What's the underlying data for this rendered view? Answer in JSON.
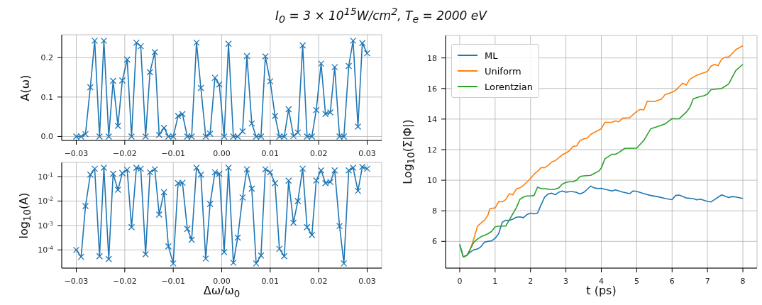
{
  "chart_data": [
    {
      "type": "line",
      "title": "I$_{0}$ = 3 × 10$^{15}$W/cm$^{2}$, T$_{e}$ = 2000 eV",
      "ylabel": "A(ω)",
      "color": "#1f77b4",
      "marker": "cross",
      "grid": true,
      "x": [
        -0.03,
        -0.029,
        -0.0281,
        -0.0271,
        -0.0262,
        -0.0252,
        -0.0243,
        -0.0233,
        -0.0224,
        -0.0214,
        -0.0205,
        -0.0195,
        -0.0186,
        -0.0176,
        -0.0167,
        -0.0157,
        -0.0148,
        -0.0138,
        -0.0129,
        -0.0119,
        -0.011,
        -0.01,
        -0.009,
        -0.0081,
        -0.0071,
        -0.0062,
        -0.0052,
        -0.0043,
        -0.0033,
        -0.0024,
        -0.0014,
        -0.0005,
        0.0005,
        0.0014,
        0.0024,
        0.0033,
        0.0043,
        0.0052,
        0.0062,
        0.0071,
        0.0081,
        0.009,
        0.01,
        0.011,
        0.0119,
        0.0129,
        0.0138,
        0.0148,
        0.0157,
        0.0167,
        0.0176,
        0.0186,
        0.0195,
        0.0205,
        0.0214,
        0.0224,
        0.0233,
        0.0243,
        0.0252,
        0.0262,
        0.0271,
        0.0281,
        0.029,
        0.03
      ],
      "values": [
        0,
        0,
        0.006,
        0.125,
        0.243,
        0,
        0.243,
        0,
        0.141,
        0.027,
        0.142,
        0.195,
        0,
        0.238,
        0.229,
        0,
        0.163,
        0.214,
        0.004,
        0.022,
        0,
        0,
        0.052,
        0.057,
        0,
        0,
        0.238,
        0.123,
        0,
        0.007,
        0.149,
        0.132,
        0,
        0.235,
        0,
        0,
        0.013,
        0.204,
        0.033,
        0,
        0,
        0.203,
        0.14,
        0.052,
        0,
        0,
        0.069,
        0.001,
        0.01,
        0.231,
        0,
        0,
        0.067,
        0.185,
        0.057,
        0.061,
        0.176,
        0,
        0,
        0.179,
        0.243,
        0.025,
        0.237,
        0.211
      ],
      "xlim": [
        -0.033,
        0.033
      ],
      "ylim": [
        -0.01,
        0.258
      ],
      "xticks": [
        {
          "value": -0.03,
          "label": "−0.03"
        },
        {
          "value": -0.02,
          "label": "−0.02"
        },
        {
          "value": -0.01,
          "label": "−0.01"
        },
        {
          "value": 0,
          "label": "0.00"
        },
        {
          "value": 0.01,
          "label": "0.01"
        },
        {
          "value": 0.02,
          "label": "0.02"
        },
        {
          "value": 0.03,
          "label": "0.03"
        }
      ],
      "yticks": [
        {
          "value": 0,
          "label": "0.0"
        },
        {
          "value": 0.1,
          "label": "0.1"
        },
        {
          "value": 0.2,
          "label": "0.2"
        }
      ]
    },
    {
      "type": "line",
      "xlabel": "Δω/ω$_{0}$",
      "ylabel": "log$_{10}$(A)",
      "color": "#1f77b4",
      "marker": "cross",
      "grid": true,
      "log": "y",
      "x": [
        -0.03,
        -0.029,
        -0.0281,
        -0.0271,
        -0.0262,
        -0.0252,
        -0.0243,
        -0.0233,
        -0.0224,
        -0.0214,
        -0.0205,
        -0.0195,
        -0.0186,
        -0.0176,
        -0.0167,
        -0.0157,
        -0.0148,
        -0.0138,
        -0.0129,
        -0.0119,
        -0.011,
        -0.01,
        -0.009,
        -0.0081,
        -0.0071,
        -0.0062,
        -0.0052,
        -0.0043,
        -0.0033,
        -0.0024,
        -0.0014,
        -0.0005,
        0.0005,
        0.0014,
        0.0024,
        0.0033,
        0.0043,
        0.0052,
        0.0062,
        0.0071,
        0.0081,
        0.009,
        0.01,
        0.011,
        0.0119,
        0.0129,
        0.0138,
        0.0148,
        0.0157,
        0.0167,
        0.0176,
        0.0186,
        0.0195,
        0.0205,
        0.0214,
        0.0224,
        0.0233,
        0.0243,
        0.0252,
        0.0262,
        0.0271,
        0.0281,
        0.029,
        0.03
      ],
      "values": [
        0.0001,
        5.2e-05,
        0.0062,
        0.12,
        0.21,
        5.5e-05,
        0.23,
        4.2e-05,
        0.13,
        0.029,
        0.14,
        0.19,
        0.00085,
        0.23,
        0.21,
        6.6e-05,
        0.15,
        0.2,
        0.0028,
        0.023,
        0.00014,
        2.8e-05,
        0.054,
        0.056,
        0.00072,
        0.00026,
        0.23,
        0.12,
        4.4e-05,
        0.0076,
        0.15,
        0.13,
        8.1e-05,
        0.23,
        3e-05,
        0.00032,
        0.014,
        0.2,
        0.032,
        2.8e-05,
        5.9e-05,
        0.2,
        0.15,
        0.054,
        0.00011,
        5.5e-05,
        0.068,
        0.0013,
        0.01,
        0.21,
        0.00085,
        0.00041,
        0.069,
        0.18,
        0.054,
        0.06,
        0.18,
        0.00095,
        2.8e-05,
        0.18,
        0.23,
        0.026,
        0.25,
        0.21
      ],
      "xlim": [
        -0.033,
        0.033
      ],
      "ylim": [
        1.8e-05,
        0.38
      ],
      "xticks": [
        {
          "value": -0.03,
          "label": "−0.03"
        },
        {
          "value": -0.02,
          "label": "−0.02"
        },
        {
          "value": -0.01,
          "label": "−0.01"
        },
        {
          "value": 0,
          "label": "0.00"
        },
        {
          "value": 0.01,
          "label": "0.01"
        },
        {
          "value": 0.02,
          "label": "0.02"
        },
        {
          "value": 0.03,
          "label": "0.03"
        }
      ],
      "yticks": [
        {
          "value": 0.0001,
          "label": "10$^{-4}$"
        },
        {
          "value": 0.001,
          "label": "10$^{-3}$"
        },
        {
          "value": 0.01,
          "label": "10$^{-2}$"
        },
        {
          "value": 0.1,
          "label": "10$^{-1}$"
        }
      ]
    },
    {
      "type": "line",
      "xlabel": "t (ps)",
      "ylabel": "Log$_{10}$(Σ|Φ|)",
      "legend": "top left",
      "grid": true,
      "xlim": [
        -0.4,
        8.4
      ],
      "ylim": [
        4.25,
        19.47
      ],
      "xticks": [
        0,
        1,
        2,
        3,
        4,
        5,
        6,
        7,
        8
      ],
      "yticks": [
        6,
        8,
        10,
        12,
        14,
        16,
        18
      ],
      "series": [
        {
          "name": "ML",
          "color": "#1f77b4",
          "x": [
            0,
            0.1,
            0.2,
            0.3,
            0.4,
            0.5,
            0.6,
            0.7,
            0.8,
            0.9,
            1.0,
            1.1,
            1.2,
            1.3,
            1.4,
            1.5,
            1.6,
            1.7,
            1.8,
            1.9,
            2.0,
            2.1,
            2.2,
            2.3,
            2.4,
            2.5,
            2.6,
            2.7,
            2.8,
            2.9,
            3.0,
            3.1,
            3.2,
            3.3,
            3.4,
            3.5,
            3.6,
            3.7,
            3.8,
            3.9,
            4.0,
            4.2,
            4.3,
            4.4,
            4.6,
            4.8,
            4.9,
            5.0,
            5.2,
            5.4,
            5.6,
            5.8,
            6.0,
            6.1,
            6.2,
            6.4,
            6.6,
            6.7,
            6.8,
            7.0,
            7.1,
            7.2,
            7.4,
            7.6,
            7.7,
            7.8,
            8.0
          ],
          "values": [
            5.8,
            4.98,
            5.1,
            5.3,
            5.45,
            5.5,
            5.65,
            5.95,
            6.0,
            6.03,
            6.2,
            6.5,
            7.25,
            7.38,
            7.37,
            7.45,
            7.58,
            7.6,
            7.55,
            7.75,
            7.85,
            7.8,
            7.85,
            8.4,
            8.9,
            9.1,
            9.15,
            9.05,
            9.22,
            9.3,
            9.22,
            9.25,
            9.25,
            9.2,
            9.1,
            9.2,
            9.4,
            9.62,
            9.5,
            9.46,
            9.47,
            9.35,
            9.3,
            9.37,
            9.23,
            9.12,
            9.3,
            9.27,
            9.12,
            9.0,
            8.92,
            8.81,
            8.73,
            9.0,
            9.03,
            8.84,
            8.8,
            8.72,
            8.76,
            8.61,
            8.58,
            8.73,
            9.04,
            8.87,
            8.93,
            8.9,
            8.81
          ]
        },
        {
          "name": "Uniform",
          "color": "#ff7f0e",
          "x": [
            0.2,
            0.3,
            0.4,
            0.5,
            0.6,
            0.7,
            0.8,
            0.85,
            0.9,
            1.0,
            1.1,
            1.2,
            1.3,
            1.4,
            1.5,
            1.6,
            1.7,
            1.8,
            1.9,
            2.0,
            2.1,
            2.2,
            2.3,
            2.4,
            2.5,
            2.6,
            2.7,
            2.8,
            2.9,
            3.0,
            3.1,
            3.2,
            3.3,
            3.4,
            3.5,
            3.6,
            3.7,
            4.0,
            4.1,
            4.3,
            4.4,
            4.5,
            4.6,
            4.8,
            5.0,
            5.1,
            5.2,
            5.3,
            5.5,
            5.7,
            5.8,
            6.0,
            6.1,
            6.3,
            6.4,
            6.5,
            6.7,
            6.9,
            7.0,
            7.1,
            7.2,
            7.3,
            7.4,
            7.5,
            7.6,
            7.8,
            8.0
          ],
          "values": [
            5.07,
            5.49,
            6.18,
            6.99,
            7.19,
            7.39,
            7.73,
            8.12,
            8.16,
            8.19,
            8.61,
            8.58,
            8.73,
            9.12,
            9.04,
            9.43,
            9.5,
            9.66,
            9.89,
            10.12,
            10.39,
            10.59,
            10.82,
            10.82,
            10.97,
            11.2,
            11.28,
            11.47,
            11.67,
            11.78,
            11.93,
            12.21,
            12.24,
            12.6,
            12.7,
            12.75,
            13.0,
            13.37,
            13.78,
            13.8,
            13.88,
            13.82,
            14.06,
            14.09,
            14.5,
            14.63,
            14.6,
            15.17,
            15.14,
            15.3,
            15.6,
            15.76,
            15.88,
            16.35,
            16.22,
            16.61,
            16.87,
            17.03,
            17.12,
            17.46,
            17.58,
            17.49,
            17.92,
            18.05,
            18.05,
            18.54,
            18.8
          ]
        },
        {
          "name": "Lorentzian",
          "color": "#2ca02c",
          "x": [
            0,
            0.1,
            0.2,
            0.3,
            0.4,
            0.5,
            0.6,
            0.7,
            0.8,
            0.9,
            1.0,
            1.1,
            1.2,
            1.3,
            1.4,
            1.5,
            1.6,
            1.7,
            1.8,
            1.9,
            2.0,
            2.1,
            2.2,
            2.3,
            2.4,
            2.5,
            2.6,
            2.7,
            2.8,
            2.9,
            3.0,
            3.1,
            3.2,
            3.3,
            3.4,
            3.5,
            3.7,
            3.85,
            3.93,
            4.0,
            4.1,
            4.3,
            4.4,
            4.5,
            4.66,
            5.0,
            5.2,
            5.4,
            5.6,
            5.8,
            6.0,
            6.2,
            6.4,
            6.5,
            6.6,
            6.8,
            6.9,
            7.0,
            7.1,
            7.4,
            7.6,
            7.8,
            8.0
          ],
          "values": [
            5.8,
            4.98,
            5.07,
            5.5,
            5.95,
            6.15,
            6.3,
            6.4,
            6.5,
            6.65,
            6.95,
            7.0,
            7.0,
            7.0,
            7.4,
            7.8,
            8.2,
            8.75,
            8.9,
            8.97,
            8.97,
            9.0,
            9.55,
            9.45,
            9.45,
            9.42,
            9.4,
            9.42,
            9.5,
            9.75,
            9.85,
            9.9,
            9.9,
            10.0,
            10.25,
            10.28,
            10.32,
            10.5,
            10.6,
            10.8,
            11.39,
            11.7,
            11.7,
            11.82,
            12.08,
            12.1,
            12.6,
            13.37,
            13.52,
            13.68,
            14.03,
            14.02,
            14.45,
            14.76,
            15.33,
            15.48,
            15.53,
            15.64,
            15.92,
            16.0,
            16.3,
            17.18,
            17.58
          ]
        }
      ]
    }
  ]
}
